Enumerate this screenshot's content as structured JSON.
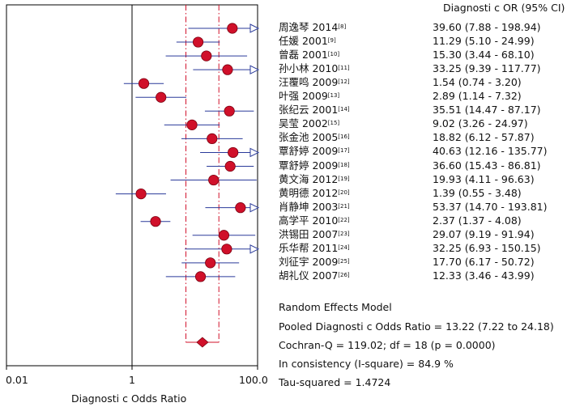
{
  "chart_data": {
    "type": "forest",
    "xlabel": "Diagnosti c Odds Ratio",
    "xscale": "log",
    "xlim": [
      0.01,
      100.0
    ],
    "xticks": [
      "0.01",
      "1",
      "100.0"
    ],
    "column_header": "Diagnosti c OR (95% CI)",
    "reference_line": 1,
    "pooled_line": 13.22,
    "studies": [
      {
        "author": "周逸琴 2014",
        "ref": "[8]",
        "or": 39.6,
        "lo": 7.88,
        "hi": 198.94,
        "ci_text": "39.60 (7.88 - 198.94)",
        "arrow": true
      },
      {
        "author": "任媛 2001",
        "ref": "[9]",
        "or": 11.29,
        "lo": 5.1,
        "hi": 24.99,
        "ci_text": "11.29 (5.10 - 24.99)",
        "arrow": false
      },
      {
        "author": "曾磊 2001",
        "ref": "[10]",
        "or": 15.3,
        "lo": 3.44,
        "hi": 68.1,
        "ci_text": "15.30 (3.44 - 68.10)",
        "arrow": false
      },
      {
        "author": "孙小林 2010",
        "ref": "[11]",
        "or": 33.25,
        "lo": 9.39,
        "hi": 117.77,
        "ci_text": "33.25 (9.39 - 117.77)",
        "arrow": true
      },
      {
        "author": "汪覆鸣 2009",
        "ref": "[12]",
        "or": 1.54,
        "lo": 0.74,
        "hi": 3.2,
        "ci_text": "1.54 (0.74 - 3.20)",
        "arrow": false
      },
      {
        "author": "叶强 2009",
        "ref": "[13]",
        "or": 2.89,
        "lo": 1.14,
        "hi": 7.32,
        "ci_text": "2.89 (1.14 - 7.32)",
        "arrow": false
      },
      {
        "author": "张纪云 2001",
        "ref": "[14]",
        "or": 35.51,
        "lo": 14.47,
        "hi": 87.17,
        "ci_text": "35.51 (14.47 - 87.17)",
        "arrow": false
      },
      {
        "author": "吴莹 2002",
        "ref": "[15]",
        "or": 9.02,
        "lo": 3.26,
        "hi": 24.97,
        "ci_text": "9.02 (3.26 - 24.97)",
        "arrow": false
      },
      {
        "author": "张金池 2005",
        "ref": "[16]",
        "or": 18.82,
        "lo": 6.12,
        "hi": 57.87,
        "ci_text": "18.82 (6.12 - 57.87)",
        "arrow": false
      },
      {
        "author": "覃舒婷 2009",
        "ref": "[17]",
        "or": 40.63,
        "lo": 12.16,
        "hi": 135.77,
        "ci_text": "40.63 (12.16 - 135.77)",
        "arrow": true
      },
      {
        "author": "覃舒婷 2009",
        "ref": "[18]",
        "or": 36.6,
        "lo": 15.43,
        "hi": 86.81,
        "ci_text": "36.60 (15.43 - 86.81)",
        "arrow": false
      },
      {
        "author": "黄文海 2012",
        "ref": "[19]",
        "or": 19.93,
        "lo": 4.11,
        "hi": 96.63,
        "ci_text": "19.93 (4.11 - 96.63)",
        "arrow": false
      },
      {
        "author": "黄明德 2012",
        "ref": "[20]",
        "or": 1.39,
        "lo": 0.55,
        "hi": 3.48,
        "ci_text": "1.39 (0.55 - 3.48)",
        "arrow": false
      },
      {
        "author": "肖静坤 2003",
        "ref": "[21]",
        "or": 53.37,
        "lo": 14.7,
        "hi": 193.81,
        "ci_text": "53.37 (14.70 - 193.81)",
        "arrow": true
      },
      {
        "author": "高学平 2010",
        "ref": "[22]",
        "or": 2.37,
        "lo": 1.37,
        "hi": 4.08,
        "ci_text": "2.37 (1.37 - 4.08)",
        "arrow": false
      },
      {
        "author": "洪锡田 2007",
        "ref": "[23]",
        "or": 29.07,
        "lo": 9.19,
        "hi": 91.94,
        "ci_text": "29.07 (9.19 - 91.94)",
        "arrow": false
      },
      {
        "author": "乐华帮 2011",
        "ref": "[24]",
        "or": 32.25,
        "lo": 6.93,
        "hi": 150.15,
        "ci_text": "32.25 (6.93 - 150.15)",
        "arrow": true
      },
      {
        "author": "刘征宇 2009",
        "ref": "[25]",
        "or": 17.7,
        "lo": 6.17,
        "hi": 50.72,
        "ci_text": "17.70 (6.17 - 50.72)",
        "arrow": false
      },
      {
        "author": "胡礼仪 2007",
        "ref": "[26]",
        "or": 12.33,
        "lo": 3.46,
        "hi": 43.99,
        "ci_text": "12.33 (3.46 - 43.99)",
        "arrow": false
      }
    ],
    "pooled": {
      "or": 13.22,
      "lo": 7.22,
      "hi": 24.18
    },
    "summary_lines": [
      "Random Effects Model",
      "Pooled Diagnosti c Odds Ratio = 13.22 (7.22 to 24.18)",
      "Cochran-Q = 119.02; df = 18 (p = 0.0000)",
      "In consistency (I-square) = 84.9 %",
      "Tau-squared = 1.4724"
    ],
    "colors": {
      "marker": "#d0102a",
      "ci_line": "#2a3a9a",
      "pooled_line": "#d0102a",
      "axis": "#000000"
    }
  }
}
